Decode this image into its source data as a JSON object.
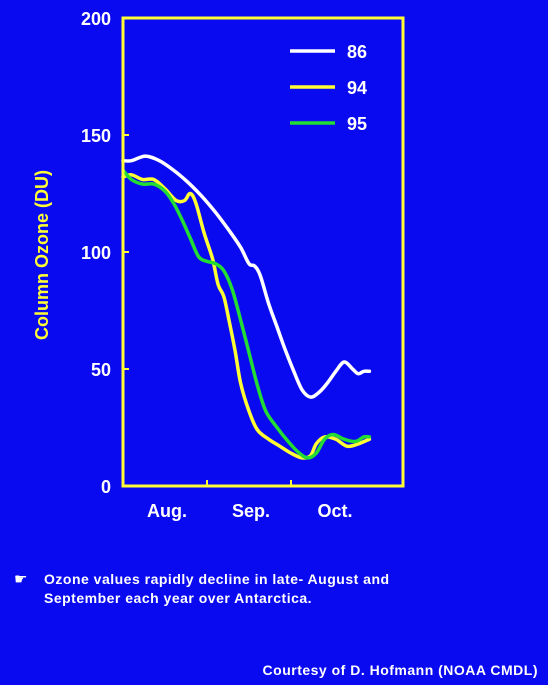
{
  "chart_data": {
    "type": "line",
    "ylabel": "Column Ozone (DU)",
    "xlabel": "",
    "ylim": [
      0,
      200
    ],
    "yticks": [
      0,
      50,
      100,
      150,
      200
    ],
    "x_month_labels": [
      "Aug.",
      "Sep.",
      "Oct."
    ],
    "x_domain_days": [
      0,
      100
    ],
    "month_label_positions_days": [
      15,
      45,
      75
    ],
    "grid": false,
    "legend_position": "top-right",
    "series": [
      {
        "name": "86",
        "color": "#ffffff",
        "points": [
          [
            0,
            139
          ],
          [
            3,
            139
          ],
          [
            8,
            141
          ],
          [
            13,
            139
          ],
          [
            18,
            135
          ],
          [
            23,
            130
          ],
          [
            28,
            124
          ],
          [
            33,
            117
          ],
          [
            38,
            109
          ],
          [
            42,
            102
          ],
          [
            45,
            95
          ],
          [
            47,
            94
          ],
          [
            49,
            90
          ],
          [
            52,
            78
          ],
          [
            55,
            68
          ],
          [
            58,
            58
          ],
          [
            61,
            49
          ],
          [
            64,
            41
          ],
          [
            67,
            38
          ],
          [
            70,
            40
          ],
          [
            73,
            44
          ],
          [
            76,
            49
          ],
          [
            79,
            53
          ],
          [
            82,
            50
          ],
          [
            84,
            48
          ],
          [
            86,
            49
          ],
          [
            88,
            49
          ]
        ]
      },
      {
        "name": "94",
        "color": "#ffff33",
        "points": [
          [
            0,
            132
          ],
          [
            3,
            133
          ],
          [
            7,
            131
          ],
          [
            11,
            131
          ],
          [
            15,
            127
          ],
          [
            19,
            122
          ],
          [
            22,
            122
          ],
          [
            24,
            125
          ],
          [
            26,
            121
          ],
          [
            29,
            108
          ],
          [
            32,
            97
          ],
          [
            34,
            86
          ],
          [
            36,
            81
          ],
          [
            38,
            70
          ],
          [
            40,
            58
          ],
          [
            42,
            44
          ],
          [
            45,
            32
          ],
          [
            48,
            24
          ],
          [
            52,
            20
          ],
          [
            56,
            17
          ],
          [
            60,
            14
          ],
          [
            64,
            12
          ],
          [
            67,
            13
          ],
          [
            69,
            18
          ],
          [
            72,
            21
          ],
          [
            76,
            20
          ],
          [
            80,
            17
          ],
          [
            84,
            18
          ],
          [
            88,
            20
          ]
        ]
      },
      {
        "name": "95",
        "color": "#22dd33",
        "points": [
          [
            0,
            135
          ],
          [
            3,
            131
          ],
          [
            7,
            129
          ],
          [
            11,
            129
          ],
          [
            15,
            126
          ],
          [
            18,
            121
          ],
          [
            21,
            114
          ],
          [
            24,
            106
          ],
          [
            27,
            98
          ],
          [
            30,
            96
          ],
          [
            33,
            95
          ],
          [
            36,
            92
          ],
          [
            39,
            84
          ],
          [
            42,
            71
          ],
          [
            45,
            57
          ],
          [
            48,
            43
          ],
          [
            51,
            32
          ],
          [
            55,
            25
          ],
          [
            59,
            19
          ],
          [
            63,
            14
          ],
          [
            66,
            12
          ],
          [
            69,
            14
          ],
          [
            72,
            20
          ],
          [
            75,
            22
          ],
          [
            79,
            20
          ],
          [
            83,
            19
          ],
          [
            86,
            21
          ],
          [
            88,
            21
          ]
        ]
      }
    ]
  },
  "caption": {
    "bullet_icon": "pointing-hand-icon",
    "bullet_glyph": "☛",
    "line1": "Ozone values rapidly decline in late- August and",
    "line2": "September each year over Antarctica."
  },
  "credit": "Courtesy of D. Hofmann (NOAA CMDL)",
  "colors": {
    "background": "#0a0af0",
    "axis": "#ffff33",
    "text": "#ffffff"
  }
}
